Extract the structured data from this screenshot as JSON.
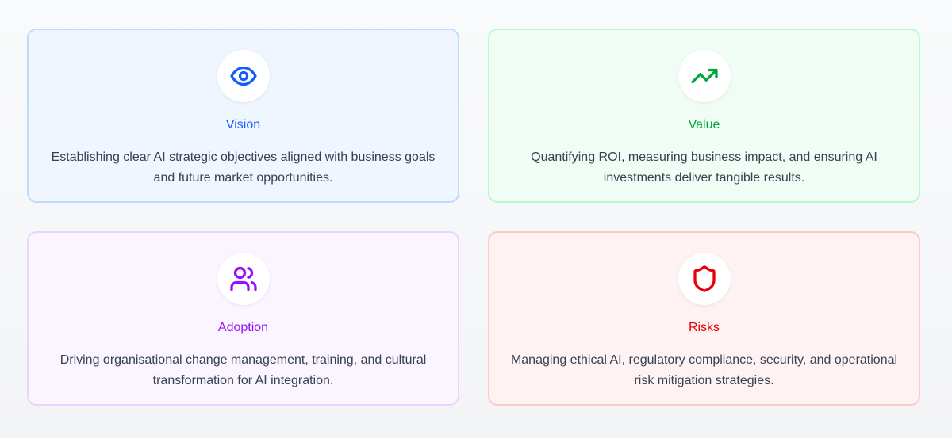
{
  "cards": [
    {
      "title": "Vision",
      "icon": "eye-icon",
      "description": "Establishing clear AI strategic objectives aligned with business goals and future market opportunities.",
      "accent": "#155dfc",
      "background": "#eff6ff",
      "border": "#bedbff"
    },
    {
      "title": "Value",
      "icon": "trending-up-icon",
      "description": "Quantifying ROI, measuring business impact, and ensuring AI investments deliver tangible results.",
      "accent": "#00a63e",
      "background": "#f0fdf4",
      "border": "#b9f8cf"
    },
    {
      "title": "Adoption",
      "icon": "users-icon",
      "description": "Driving organisational change management, training, and cultural transformation for AI integration.",
      "accent": "#9810fa",
      "background": "#faf5ff",
      "border": "#e9d4ff"
    },
    {
      "title": "Risks",
      "icon": "shield-icon",
      "description": "Managing ethical AI, regulatory compliance, security, and operational risk mitigation strategies.",
      "accent": "#e7000b",
      "background": "#fef2f2",
      "border": "#ffc9c9"
    }
  ]
}
